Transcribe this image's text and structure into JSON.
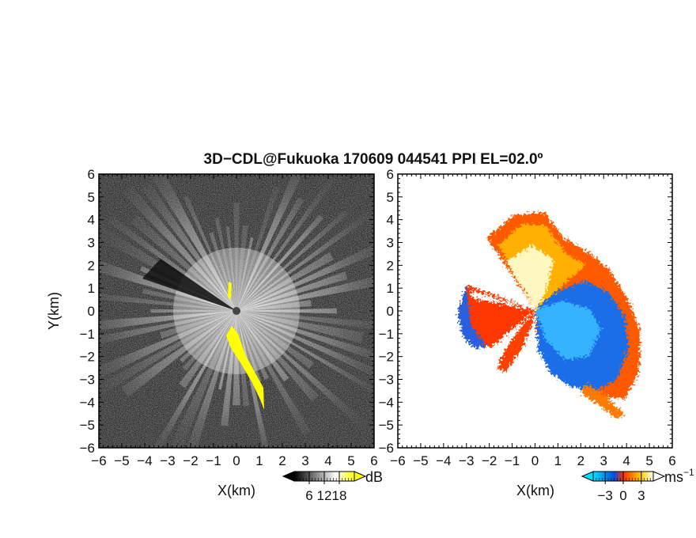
{
  "chart_data": {
    "title": "3D−CDL@Fukuoka 170609 044541 PPI EL=02.0º",
    "type": "heatmap",
    "panels": [
      {
        "name": "reflectivity",
        "xlabel": "X(km)",
        "ylabel": "Y(km)",
        "xlim": [
          -6,
          6
        ],
        "ylim": [
          -6,
          6
        ],
        "xticks": [
          "−6",
          "−5",
          "−4",
          "−3",
          "−2",
          "−1",
          "0",
          "1",
          "2",
          "3",
          "4",
          "5",
          "6"
        ],
        "yticks": [
          "6",
          "5",
          "4",
          "3",
          "2",
          "1",
          "0",
          "−1",
          "−2",
          "−3",
          "−4",
          "−5",
          "−6"
        ],
        "colorbar": {
          "unit": "dB",
          "ticks": [
            "6",
            "12",
            "18"
          ],
          "tick_values": [
            6,
            12,
            18
          ],
          "range": [
            0,
            24
          ],
          "colors": [
            "#000000",
            "#ffffff",
            "#ffff00"
          ]
        }
      },
      {
        "name": "radial-velocity",
        "xlabel": "X(km)",
        "xlim": [
          -6,
          6
        ],
        "ylim": [
          -6,
          6
        ],
        "xticks": [
          "−6",
          "−5",
          "−4",
          "−3",
          "−2",
          "−1",
          "0",
          "1",
          "2",
          "3",
          "4",
          "5",
          "6"
        ],
        "yticks": [
          "6",
          "5",
          "4",
          "3",
          "2",
          "1",
          "0",
          "−1",
          "−2",
          "−3",
          "−4",
          "−5",
          "−6"
        ],
        "colorbar": {
          "unit": "ms",
          "unit_exponent": "−1",
          "ticks": [
            "−3",
            "0",
            "3"
          ],
          "tick_values": [
            -3,
            0,
            3
          ],
          "range": [
            -5,
            5
          ],
          "colors": [
            "#00e0ff",
            "#0050e0",
            "#ff3000",
            "#ffd000",
            "#ffffff"
          ]
        }
      }
    ]
  }
}
